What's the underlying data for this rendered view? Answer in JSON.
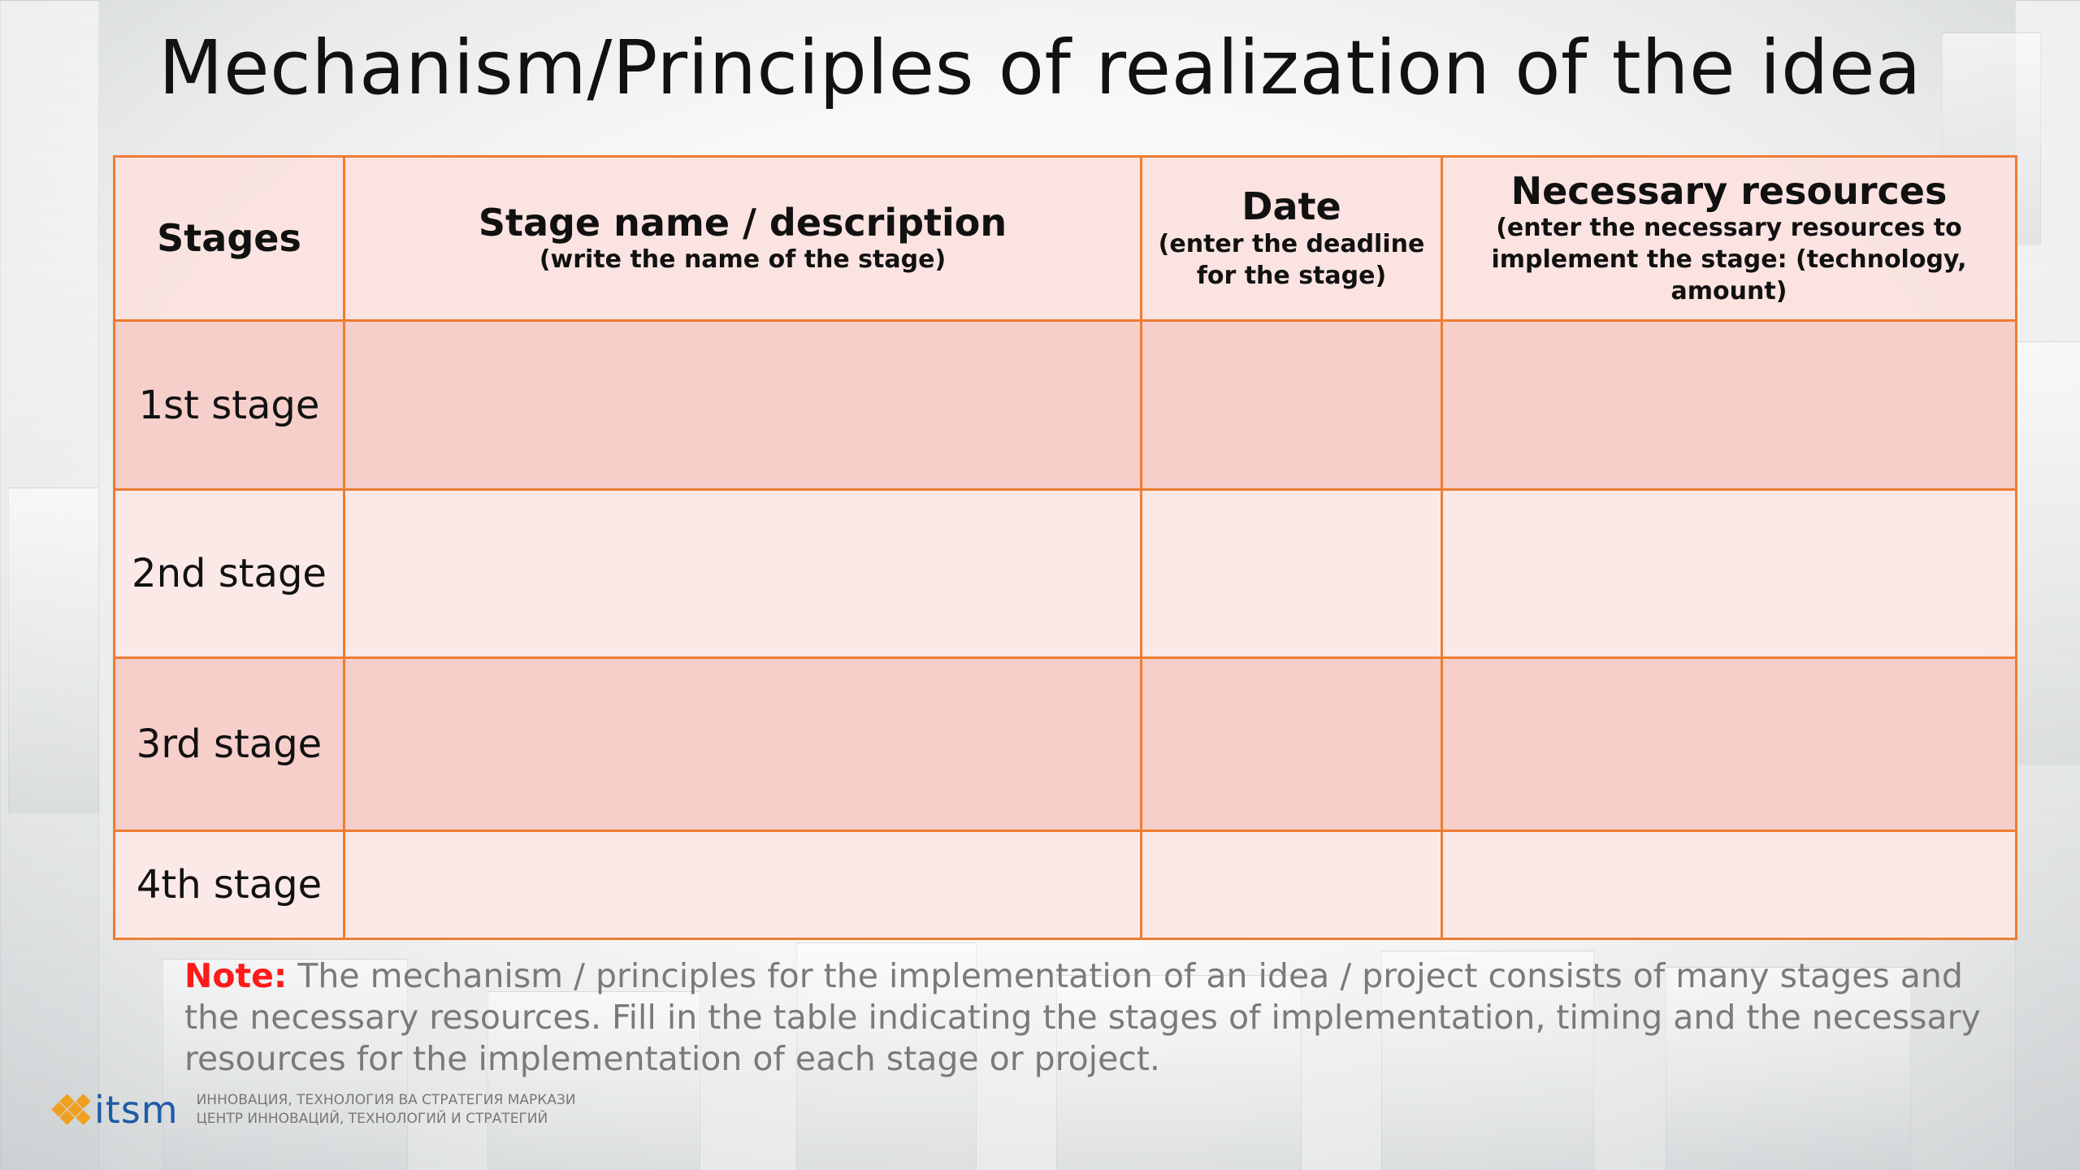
{
  "title": "Mechanism/Principles of realization of the idea",
  "table": {
    "headers": [
      {
        "main": "Stages",
        "sub": ""
      },
      {
        "main": "Stage name / description",
        "sub": "(write the name of the stage)"
      },
      {
        "main": "Date",
        "sub": "(enter the deadline for the stage)"
      },
      {
        "main": "Necessary resources",
        "sub": "(enter the necessary resources to implement the stage: (technology, amount)"
      }
    ],
    "rows": [
      {
        "label": "1st stage",
        "description": "",
        "date": "",
        "resources": ""
      },
      {
        "label": "2nd stage",
        "description": "",
        "date": "",
        "resources": ""
      },
      {
        "label": "3rd stage",
        "description": "",
        "date": "",
        "resources": ""
      },
      {
        "label": "4th stage",
        "description": "",
        "date": "",
        "resources": ""
      }
    ]
  },
  "note": {
    "label": "Note:",
    "text": "The mechanism / principles for the implementation of an idea / project consists of many stages and the necessary resources. Fill in the table indicating the stages of implementation, timing and the necessary resources for the implementation of each stage or project."
  },
  "footer": {
    "logo_text": "itsm",
    "line1": "ИННОВАЦИЯ, ТЕХНОЛОГИЯ ВА СТРАТЕГИЯ МАРКАЗИ",
    "line2": "ЦЕНТР ИННОВАЦИЙ, ТЕХНОЛОГИЙ И СТРАТЕГИЙ"
  },
  "colors": {
    "border": "#ed7d31",
    "note_label": "#ff1a1a",
    "logo_text": "#1e5aa8",
    "logo_mark": "#f0a020"
  },
  "icons": {
    "logo": "diamond-grid-logo-icon"
  }
}
